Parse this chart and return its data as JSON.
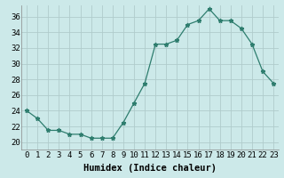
{
  "x": [
    0,
    1,
    2,
    3,
    4,
    5,
    6,
    7,
    8,
    9,
    10,
    11,
    12,
    13,
    14,
    15,
    16,
    17,
    18,
    19,
    20,
    21,
    22,
    23
  ],
  "y": [
    24,
    23,
    21.5,
    21.5,
    21,
    21,
    20.5,
    20.5,
    20.5,
    22.5,
    25,
    27.5,
    32.5,
    32.5,
    33,
    35,
    35.5,
    37,
    35.5,
    35.5,
    34.5,
    32.5,
    29,
    27.5
  ],
  "line_color": "#2e7d6e",
  "marker": "*",
  "marker_size": 3.5,
  "bg_color": "#cce9e9",
  "grid_color": "#b0cccc",
  "xlabel": "Humidex (Indice chaleur)",
  "ylabel_ticks": [
    20,
    22,
    24,
    26,
    28,
    30,
    32,
    34,
    36
  ],
  "ylim": [
    19.0,
    37.5
  ],
  "xlim": [
    -0.5,
    23.5
  ],
  "xtick_labels": [
    "0",
    "1",
    "2",
    "3",
    "4",
    "5",
    "6",
    "7",
    "8",
    "9",
    "10",
    "11",
    "12",
    "13",
    "14",
    "15",
    "16",
    "17",
    "18",
    "19",
    "20",
    "21",
    "22",
    "23"
  ],
  "tick_fontsize": 6.5,
  "xlabel_fontsize": 7.5
}
